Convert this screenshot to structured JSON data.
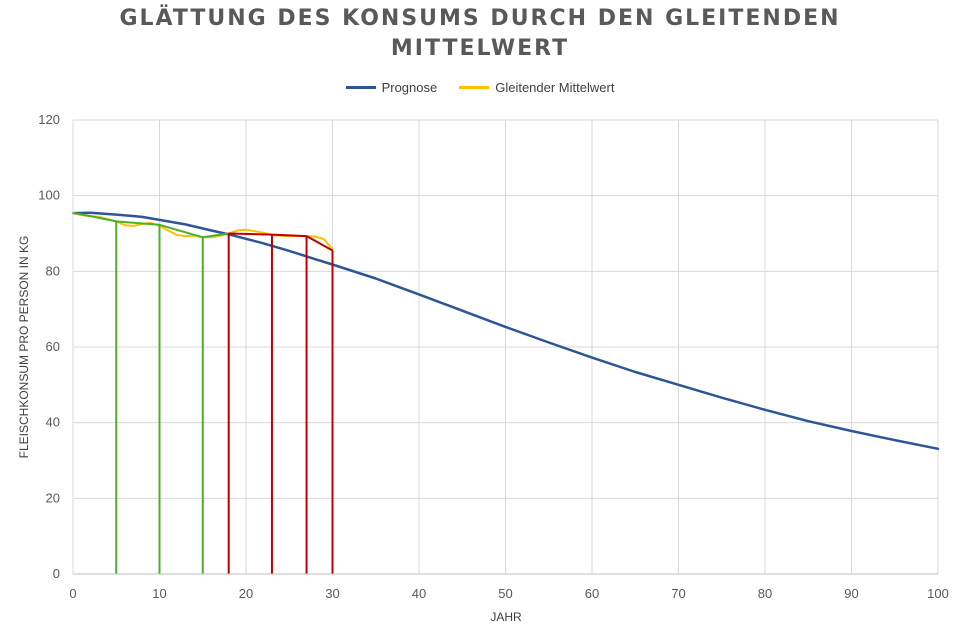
{
  "chart_data": {
    "type": "line",
    "title": "GLÄTTUNG DES KONSUMS DURCH DEN GLEITENDEN MITTELWERT",
    "xlabel": "JAHR",
    "ylabel": "FLEISCHKONSUM PRO PERSON IN KG",
    "xlim": [
      0,
      100
    ],
    "ylim": [
      0,
      120
    ],
    "xticks": [
      0,
      10,
      20,
      30,
      40,
      50,
      60,
      70,
      80,
      90,
      100
    ],
    "yticks": [
      0,
      20,
      40,
      60,
      80,
      100,
      120
    ],
    "grid": true,
    "legend_position": "top-center",
    "series": [
      {
        "name": "Prognose",
        "color": "#2F5597",
        "x": [
          0,
          2,
          5,
          8,
          10,
          13,
          16,
          18,
          20,
          22,
          25,
          28,
          30,
          35,
          40,
          45,
          50,
          55,
          60,
          65,
          70,
          75,
          80,
          85,
          90,
          95,
          100
        ],
        "y": [
          95.4,
          95.5,
          95.0,
          94.4,
          93.6,
          92.4,
          90.8,
          89.8,
          88.6,
          87.4,
          85.4,
          83.2,
          81.8,
          78.1,
          73.9,
          69.6,
          65.3,
          61.2,
          57.2,
          53.4,
          50.0,
          46.6,
          43.4,
          40.4,
          37.8,
          35.4,
          33.1
        ]
      },
      {
        "name": "Gleitender Mittelwert",
        "color": "#FFC000",
        "x": [
          0,
          1,
          3,
          5,
          6,
          7,
          8,
          9,
          10,
          11,
          12,
          13,
          14,
          15,
          16,
          17,
          18,
          19,
          20,
          21,
          22,
          23,
          24,
          25,
          26,
          27,
          28,
          29,
          30
        ],
        "y": [
          95.4,
          94.8,
          94.4,
          93.2,
          92.2,
          92.0,
          92.5,
          92.8,
          92.0,
          90.8,
          89.6,
          89.3,
          89.4,
          89.0,
          89.0,
          89.4,
          90.0,
          90.8,
          91.0,
          90.6,
          90.2,
          89.6,
          89.4,
          89.3,
          89.3,
          89.3,
          89.2,
          88.5,
          85.8
        ]
      }
    ],
    "overlays": [
      {
        "color": "#4CAF2A",
        "x": [
          0,
          5,
          10,
          15,
          18
        ],
        "y": [
          95.5,
          93.2,
          92.3,
          89.0,
          90.0
        ]
      },
      {
        "color": "#C00000",
        "x": [
          18,
          23,
          27,
          30
        ],
        "y": [
          90.0,
          89.7,
          89.3,
          85.5
        ]
      }
    ],
    "drop_lines": [
      {
        "x": 5,
        "y": 93.2,
        "color": "#4CAF2A"
      },
      {
        "x": 10,
        "y": 92.3,
        "color": "#4CAF2A"
      },
      {
        "x": 15,
        "y": 89.0,
        "color": "#4CAF2A"
      },
      {
        "x": 18,
        "y": 90.0,
        "color": "#C00000"
      },
      {
        "x": 23,
        "y": 89.7,
        "color": "#C00000"
      },
      {
        "x": 27,
        "y": 89.3,
        "color": "#C00000"
      },
      {
        "x": 30,
        "y": 85.5,
        "color": "#C00000"
      }
    ]
  },
  "legend": {
    "prognose_label": "Prognose",
    "mittelwert_label": "Gleitender Mittelwert"
  },
  "colors": {
    "title": "#595959",
    "grid": "#D9D9D9",
    "axis": "#BFBFBF",
    "prognose": "#2F5597",
    "mittelwert": "#FFC000",
    "green": "#4CAF2A",
    "red": "#C00000"
  }
}
